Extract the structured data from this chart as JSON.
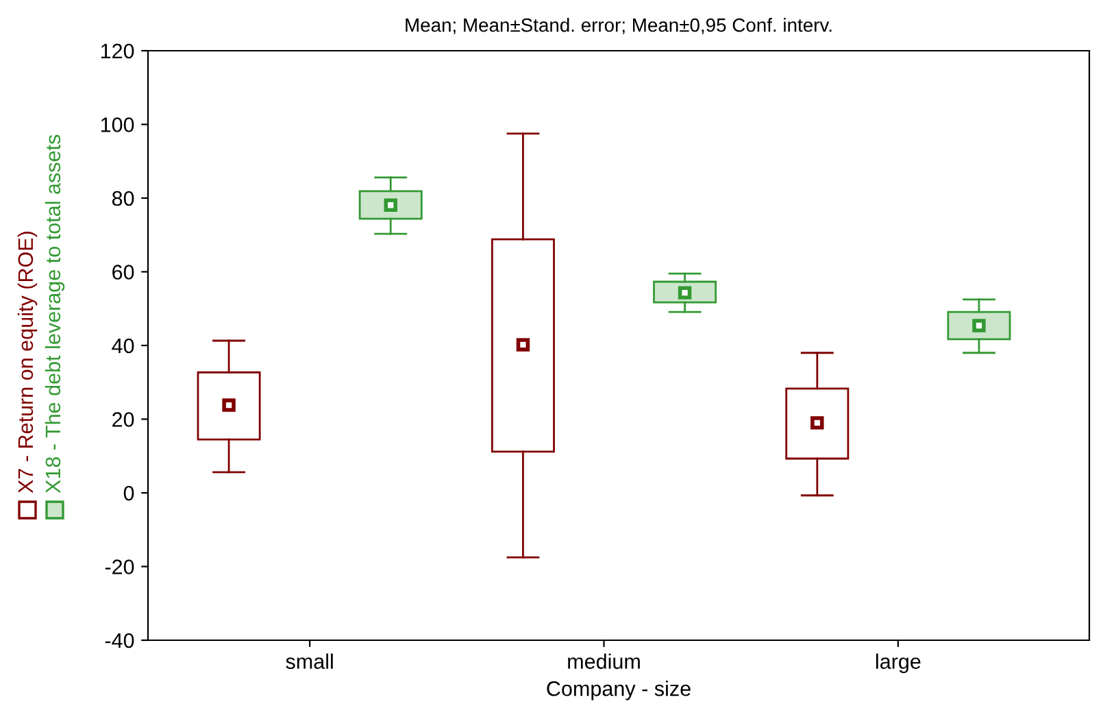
{
  "chart_data": {
    "type": "box",
    "title": "Mean; Mean±Stand. error; Mean±0,95 Conf. interv.",
    "xlabel": "Company - size",
    "categories": [
      "small",
      "medium",
      "large"
    ],
    "ylim": [
      -40,
      120
    ],
    "yticks": [
      -40,
      -20,
      0,
      20,
      40,
      60,
      80,
      100,
      120
    ],
    "grid": false,
    "legend": "left",
    "marker": "square",
    "series": [
      {
        "name": "X7 - Return on equity (ROE)",
        "color": "#800000",
        "boxes": [
          {
            "low": 5.6,
            "q1": 14.5,
            "median": 23.8,
            "q3": 32.7,
            "high": 41.3
          },
          {
            "low": -17.5,
            "q1": 11.2,
            "median": 40.2,
            "q3": 68.8,
            "high": 97.5
          },
          {
            "low": -0.7,
            "q1": 9.3,
            "median": 19,
            "q3": 28.3,
            "high": 38
          }
        ]
      },
      {
        "name": "X18 - The debt leverage to total assets",
        "color": "#339933",
        "boxes": [
          {
            "low": 70.3,
            "q1": 74.4,
            "median": 78.1,
            "q3": 81.9,
            "high": 85.6
          },
          {
            "low": 49.1,
            "q1": 51.7,
            "median": 54.3,
            "q3": 57.3,
            "high": 59.5
          },
          {
            "low": 38,
            "q1": 41.7,
            "median": 45.4,
            "q3": 49.1,
            "high": 52.5
          }
        ]
      }
    ]
  }
}
